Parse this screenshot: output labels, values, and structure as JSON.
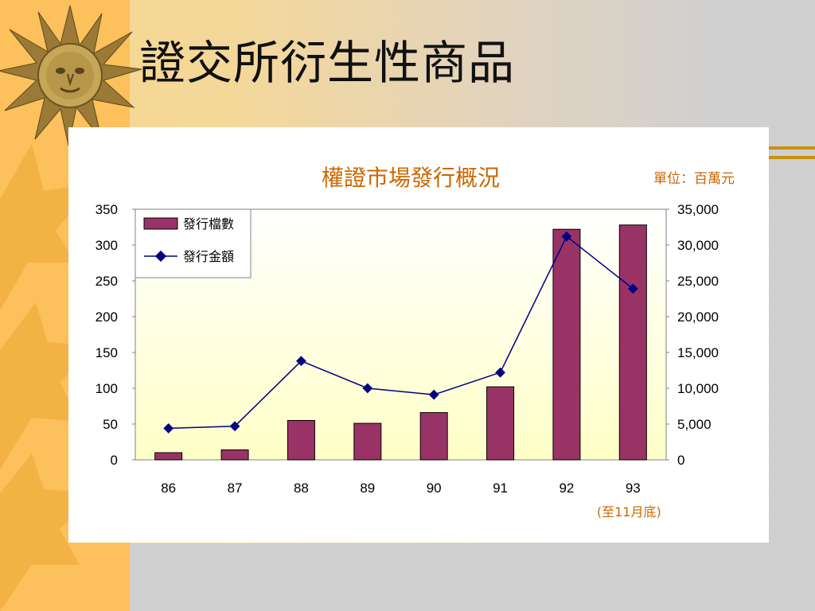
{
  "slide": {
    "title": "證交所衍生性商品"
  },
  "colors": {
    "accent_band": "#fcc05c",
    "bar": "#993366",
    "line": "#000080",
    "title_orange": "#cc6600"
  },
  "chart_data": {
    "type": "bar",
    "title": "權證市場發行概況",
    "unit_label": "單位：百萬元",
    "categories": [
      "86",
      "87",
      "88",
      "89",
      "90",
      "91",
      "92",
      "93"
    ],
    "category_note": {
      "category": "93",
      "text": "(至11月底)"
    },
    "series": [
      {
        "name": "發行檔數",
        "kind": "bar",
        "axis": "left",
        "values": [
          10,
          14,
          55,
          51,
          66,
          102,
          322,
          328
        ]
      },
      {
        "name": "發行金額",
        "kind": "line",
        "axis": "right",
        "values": [
          4400,
          4700,
          13800,
          10000,
          9100,
          12200,
          31200,
          23900
        ]
      }
    ],
    "y_left": {
      "min": 0,
      "max": 350,
      "ticks": [
        "350",
        "300",
        "250",
        "200",
        "150",
        "100",
        "50",
        "0"
      ]
    },
    "y_right": {
      "min": 0,
      "max": 35000,
      "ticks": [
        "35,000",
        "30,000",
        "25,000",
        "20,000",
        "15,000",
        "10,000",
        "5,000",
        "0"
      ]
    },
    "grid": false,
    "legend_position": "top-left"
  }
}
